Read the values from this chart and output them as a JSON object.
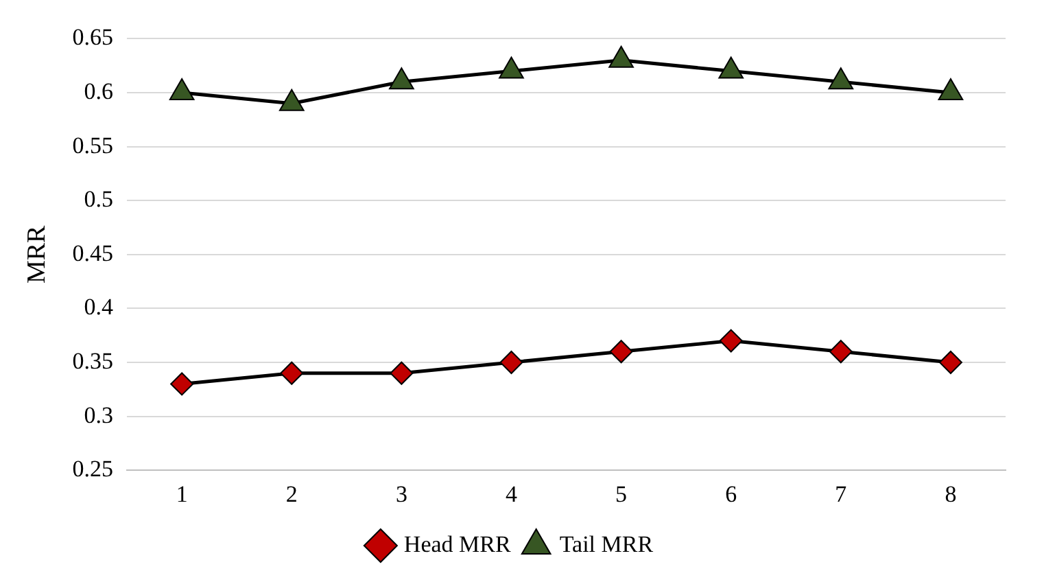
{
  "chart_data": {
    "type": "line",
    "ylabel": "MRR",
    "categories": [
      "1",
      "2",
      "3",
      "4",
      "5",
      "6",
      "7",
      "8"
    ],
    "series": [
      {
        "name": "Head MRR",
        "color": "#c00000",
        "marker": "diamond",
        "values": [
          0.33,
          0.34,
          0.34,
          0.35,
          0.36,
          0.37,
          0.36,
          0.35
        ]
      },
      {
        "name": "Tail MRR",
        "color": "#375623",
        "marker": "triangle",
        "values": [
          0.6,
          0.59,
          0.61,
          0.62,
          0.63,
          0.62,
          0.61,
          0.6
        ]
      }
    ],
    "ylim": [
      0.25,
      0.65
    ],
    "yticks": [
      0.25,
      0.3,
      0.35,
      0.4,
      0.45,
      0.5,
      0.55,
      0.6,
      0.65
    ],
    "grid": "y",
    "legend": "bottom",
    "line_style": "solid"
  }
}
